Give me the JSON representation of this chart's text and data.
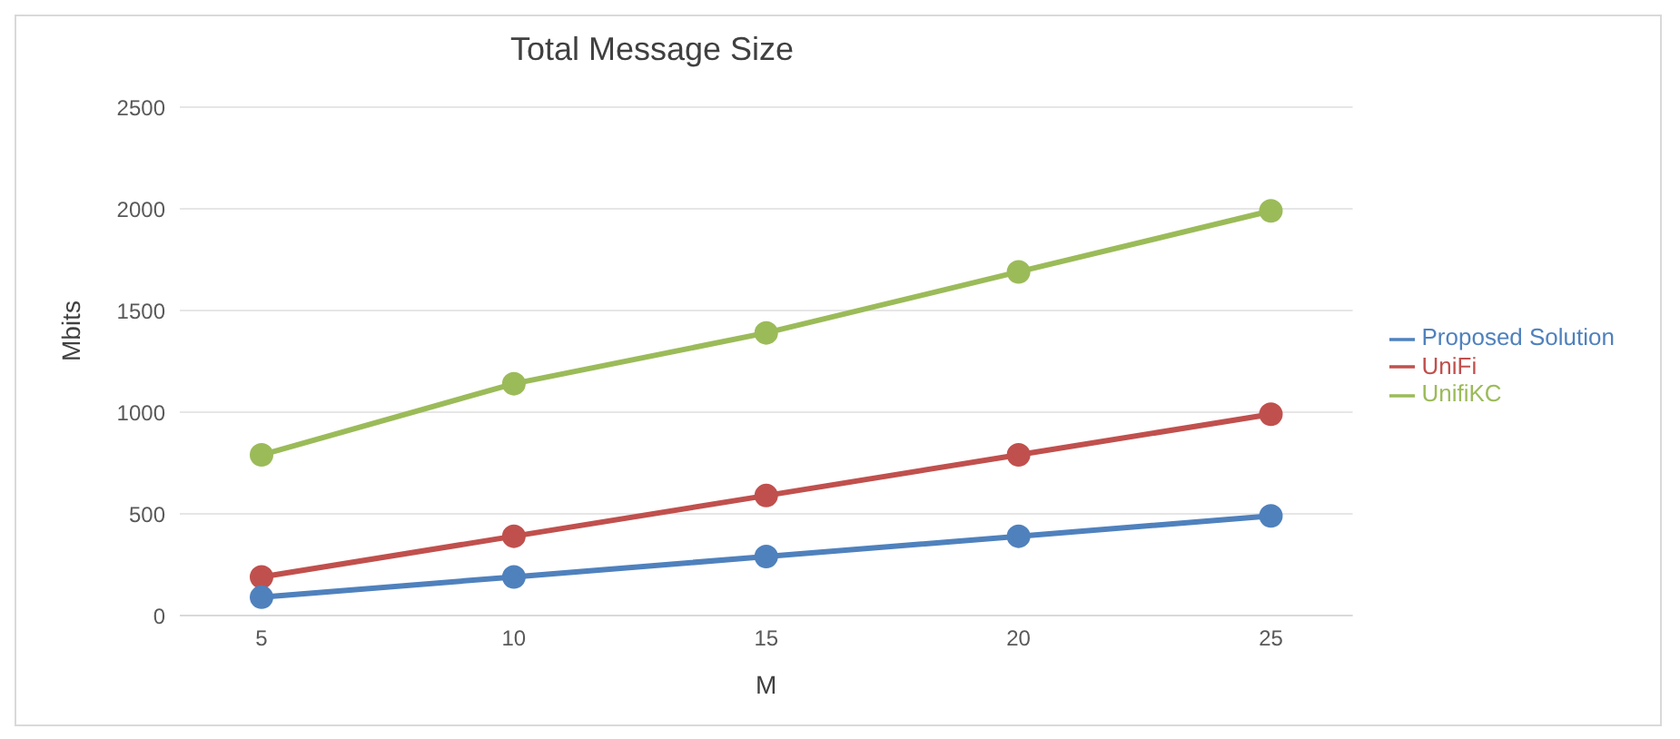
{
  "chart_data": {
    "type": "line",
    "title": "Total Message Size",
    "xlabel": "M",
    "ylabel": "Mbits",
    "categories": [
      "5",
      "10",
      "15",
      "20",
      "25"
    ],
    "series": [
      {
        "name": "UnifiKC",
        "color": "#9bbb59",
        "values": [
          790,
          1140,
          1390,
          1690,
          1990
        ]
      },
      {
        "name": "UniFi",
        "color": "#c0504d",
        "values": [
          190,
          390,
          590,
          790,
          990
        ]
      },
      {
        "name": "Proposed Solution",
        "color": "#4f81bd",
        "values": [
          90,
          190,
          290,
          390,
          490
        ]
      }
    ],
    "ylim": [
      0,
      2500
    ],
    "yticks": [
      0,
      500,
      1000,
      1500,
      2000,
      2500
    ],
    "grid": "y",
    "legend": "right",
    "marker": "circle",
    "line_style": "solid"
  }
}
